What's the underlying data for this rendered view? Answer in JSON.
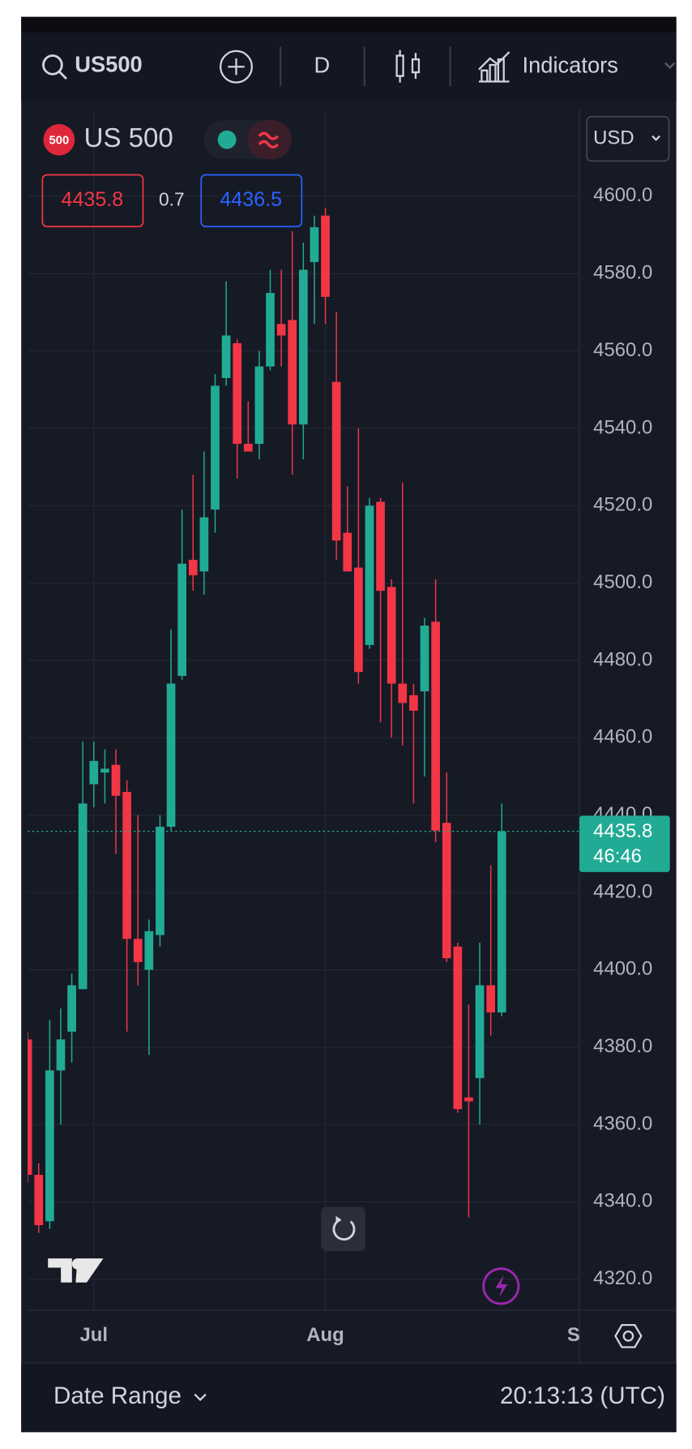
{
  "toolbar": {
    "symbol": "US500",
    "interval": "D",
    "indicators": "Indicators"
  },
  "legend": {
    "badge": "500",
    "symbol": "US 500",
    "bid": "4435.8",
    "spread": "0.7",
    "ask": "4436.5"
  },
  "currency": "USD",
  "chart_data": {
    "type": "candlestick",
    "categories": [
      null,
      null,
      null,
      null,
      null,
      null,
      "Jul",
      null,
      null,
      null,
      null,
      null,
      null,
      null,
      null,
      null,
      null,
      null,
      null,
      null,
      null,
      null,
      null,
      null,
      null,
      null,
      null,
      "Aug",
      null,
      null,
      null,
      null,
      null,
      null,
      null,
      null,
      null,
      null,
      null,
      null,
      null,
      null,
      null,
      null,
      null,
      null,
      null,
      null,
      null,
      null,
      "Se"
    ],
    "open": [
      4382,
      4347,
      4335,
      4374,
      4384,
      4395,
      4448,
      4451,
      4453,
      4446,
      4408,
      4400,
      4409,
      4437,
      4476,
      4506,
      4503,
      4519,
      4553,
      4562,
      4536,
      4536,
      4556,
      4567,
      4568,
      4541,
      4583,
      4595,
      4552,
      4513,
      4504,
      4484,
      4521,
      4499,
      4474,
      4471,
      4472,
      4490,
      4438,
      4406,
      4367,
      4372,
      4396,
      4389,
      null,
      null,
      null,
      null,
      null,
      null,
      null
    ],
    "high": [
      4384,
      4350,
      4387,
      4390,
      4399,
      4459,
      4459,
      4457,
      4457,
      4449,
      4440,
      4413,
      4440,
      4488,
      4519,
      4528,
      4534,
      4554,
      4578,
      4563,
      4547,
      4560,
      4581,
      4581,
      4591,
      4588,
      4595,
      4597,
      4570,
      4525,
      4540,
      4522,
      4522,
      4501,
      4526,
      4474,
      4491,
      4501,
      4451,
      4407,
      4391,
      4407,
      4427,
      4443,
      null,
      null,
      null,
      null,
      null,
      null,
      null
    ],
    "low": [
      4345,
      4332,
      4333,
      4360,
      4376,
      4395,
      4442,
      4443,
      4430,
      4384,
      4396,
      4378,
      4406,
      4436,
      4475,
      4498,
      4497,
      4513,
      4551,
      4527,
      4534,
      4532,
      4555,
      4556,
      4528,
      4532,
      4567,
      4567,
      4506,
      4503,
      4474,
      4483,
      4464,
      4460,
      4458,
      4443,
      4450,
      4433,
      4402,
      4363,
      4336,
      4360,
      4383,
      4388,
      null,
      null,
      null,
      null,
      null,
      null,
      null
    ],
    "close": [
      4347,
      4334,
      4374,
      4382,
      4396,
      4443,
      4454,
      4452,
      4445,
      4408,
      4402,
      4410,
      4437,
      4474,
      4505,
      4502,
      4517,
      4551,
      4564,
      4536,
      4534,
      4556,
      4575,
      4564,
      4541,
      4581,
      4592,
      4574,
      4511,
      4503,
      4477,
      4520,
      4498,
      4474,
      4469,
      4467,
      4489,
      4436,
      4403,
      4364,
      4366,
      4396,
      4389,
      4435.8,
      null,
      null,
      null,
      null,
      null,
      null,
      null
    ],
    "up_color": "#22ab94",
    "down_color": "#f23645",
    "ylim": [
      4312,
      4622.5
    ],
    "yticks": [
      {
        "value": 4320,
        "label": "4320.0"
      },
      {
        "value": 4340,
        "label": "4340.0"
      },
      {
        "value": 4360,
        "label": "4360.0"
      },
      {
        "value": 4380,
        "label": "4380.0"
      },
      {
        "value": 4400,
        "label": "4400.0"
      },
      {
        "value": 4420,
        "label": "4420.0"
      },
      {
        "value": 4440,
        "label": "4440.0"
      },
      {
        "value": 4460,
        "label": "4460.0"
      },
      {
        "value": 4480,
        "label": "4480.0"
      },
      {
        "value": 4500,
        "label": "4500.0"
      },
      {
        "value": 4520,
        "label": "4520.0"
      },
      {
        "value": 4540,
        "label": "4540.0"
      },
      {
        "value": 4560,
        "label": "4560.0"
      },
      {
        "value": 4580,
        "label": "4580.0"
      },
      {
        "value": 4600,
        "label": "4600.0"
      }
    ],
    "grid": true,
    "last_price": 4435.8,
    "countdown": "46:46"
  },
  "footer": {
    "date_range": "Date Range",
    "time": "20:13:13 (UTC)"
  }
}
